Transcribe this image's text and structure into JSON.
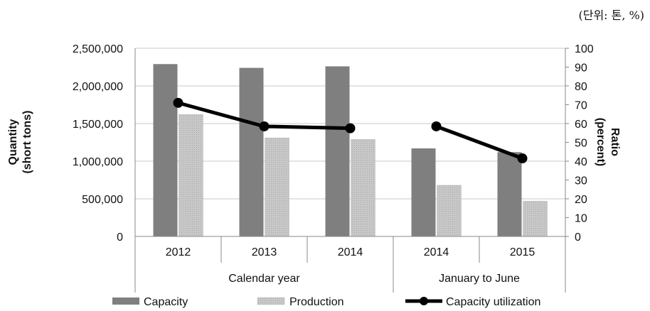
{
  "unit_note": "(단위: 톤, %)",
  "chart_data": {
    "type": "bar",
    "categories": [
      "2012",
      "2013",
      "2014",
      "2014",
      "2015"
    ],
    "groups": [
      {
        "label": "Calendar year",
        "categories": [
          "2012",
          "2013",
          "2014"
        ]
      },
      {
        "label": "January to June",
        "categories": [
          "2014",
          "2015"
        ]
      }
    ],
    "series": [
      {
        "name": "Capacity",
        "type": "bar",
        "axis": "left",
        "color": "#7f7f7f",
        "values": [
          2290000,
          2240000,
          2260000,
          1170000,
          1120000
        ]
      },
      {
        "name": "Production",
        "type": "bar",
        "axis": "left",
        "color": "#c8c8c8",
        "values": [
          1620000,
          1310000,
          1290000,
          680000,
          470000
        ]
      },
      {
        "name": "Capacity utilization",
        "type": "line",
        "axis": "right",
        "color": "#000000",
        "segments": [
          [
            0,
            2
          ],
          [
            3,
            4
          ]
        ],
        "values": [
          71,
          58.5,
          57.5,
          58.5,
          41.5
        ]
      }
    ],
    "ylabel": "Quantity\n(short tons)",
    "ylim": [
      0,
      2500000
    ],
    "yticks": [
      "0",
      "500,000",
      "1,000,000",
      "1,500,000",
      "2,000,000",
      "2,500,000"
    ],
    "y2label": "Ratio\n(percent)",
    "y2lim": [
      0,
      100
    ],
    "y2ticks": [
      "0",
      "10",
      "20",
      "30",
      "40",
      "50",
      "60",
      "70",
      "80",
      "90",
      "100"
    ],
    "grid": true,
    "legend_position": "bottom"
  }
}
